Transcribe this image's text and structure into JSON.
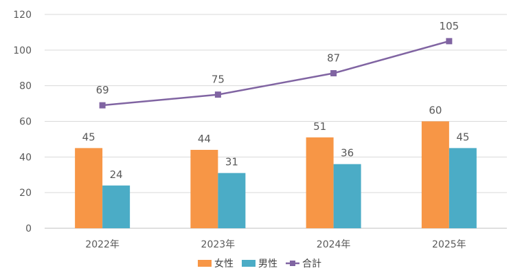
{
  "chart_data": {
    "type": "bar",
    "categories": [
      "2022年",
      "2023年",
      "2024年",
      "2025年"
    ],
    "series": [
      {
        "name": "女性",
        "type": "bar",
        "color": "#F79646",
        "values": [
          45,
          44,
          51,
          60
        ]
      },
      {
        "name": "男性",
        "type": "bar",
        "color": "#4BACC6",
        "values": [
          24,
          31,
          36,
          45
        ]
      },
      {
        "name": "合計",
        "type": "line",
        "color": "#8064A2",
        "values": [
          69,
          75,
          87,
          105
        ]
      }
    ],
    "title": "",
    "xlabel": "",
    "ylabel": "",
    "ylim": [
      0,
      120
    ],
    "yticks": [
      0,
      20,
      40,
      60,
      80,
      100,
      120
    ],
    "grid": true,
    "legend": "bottom"
  }
}
